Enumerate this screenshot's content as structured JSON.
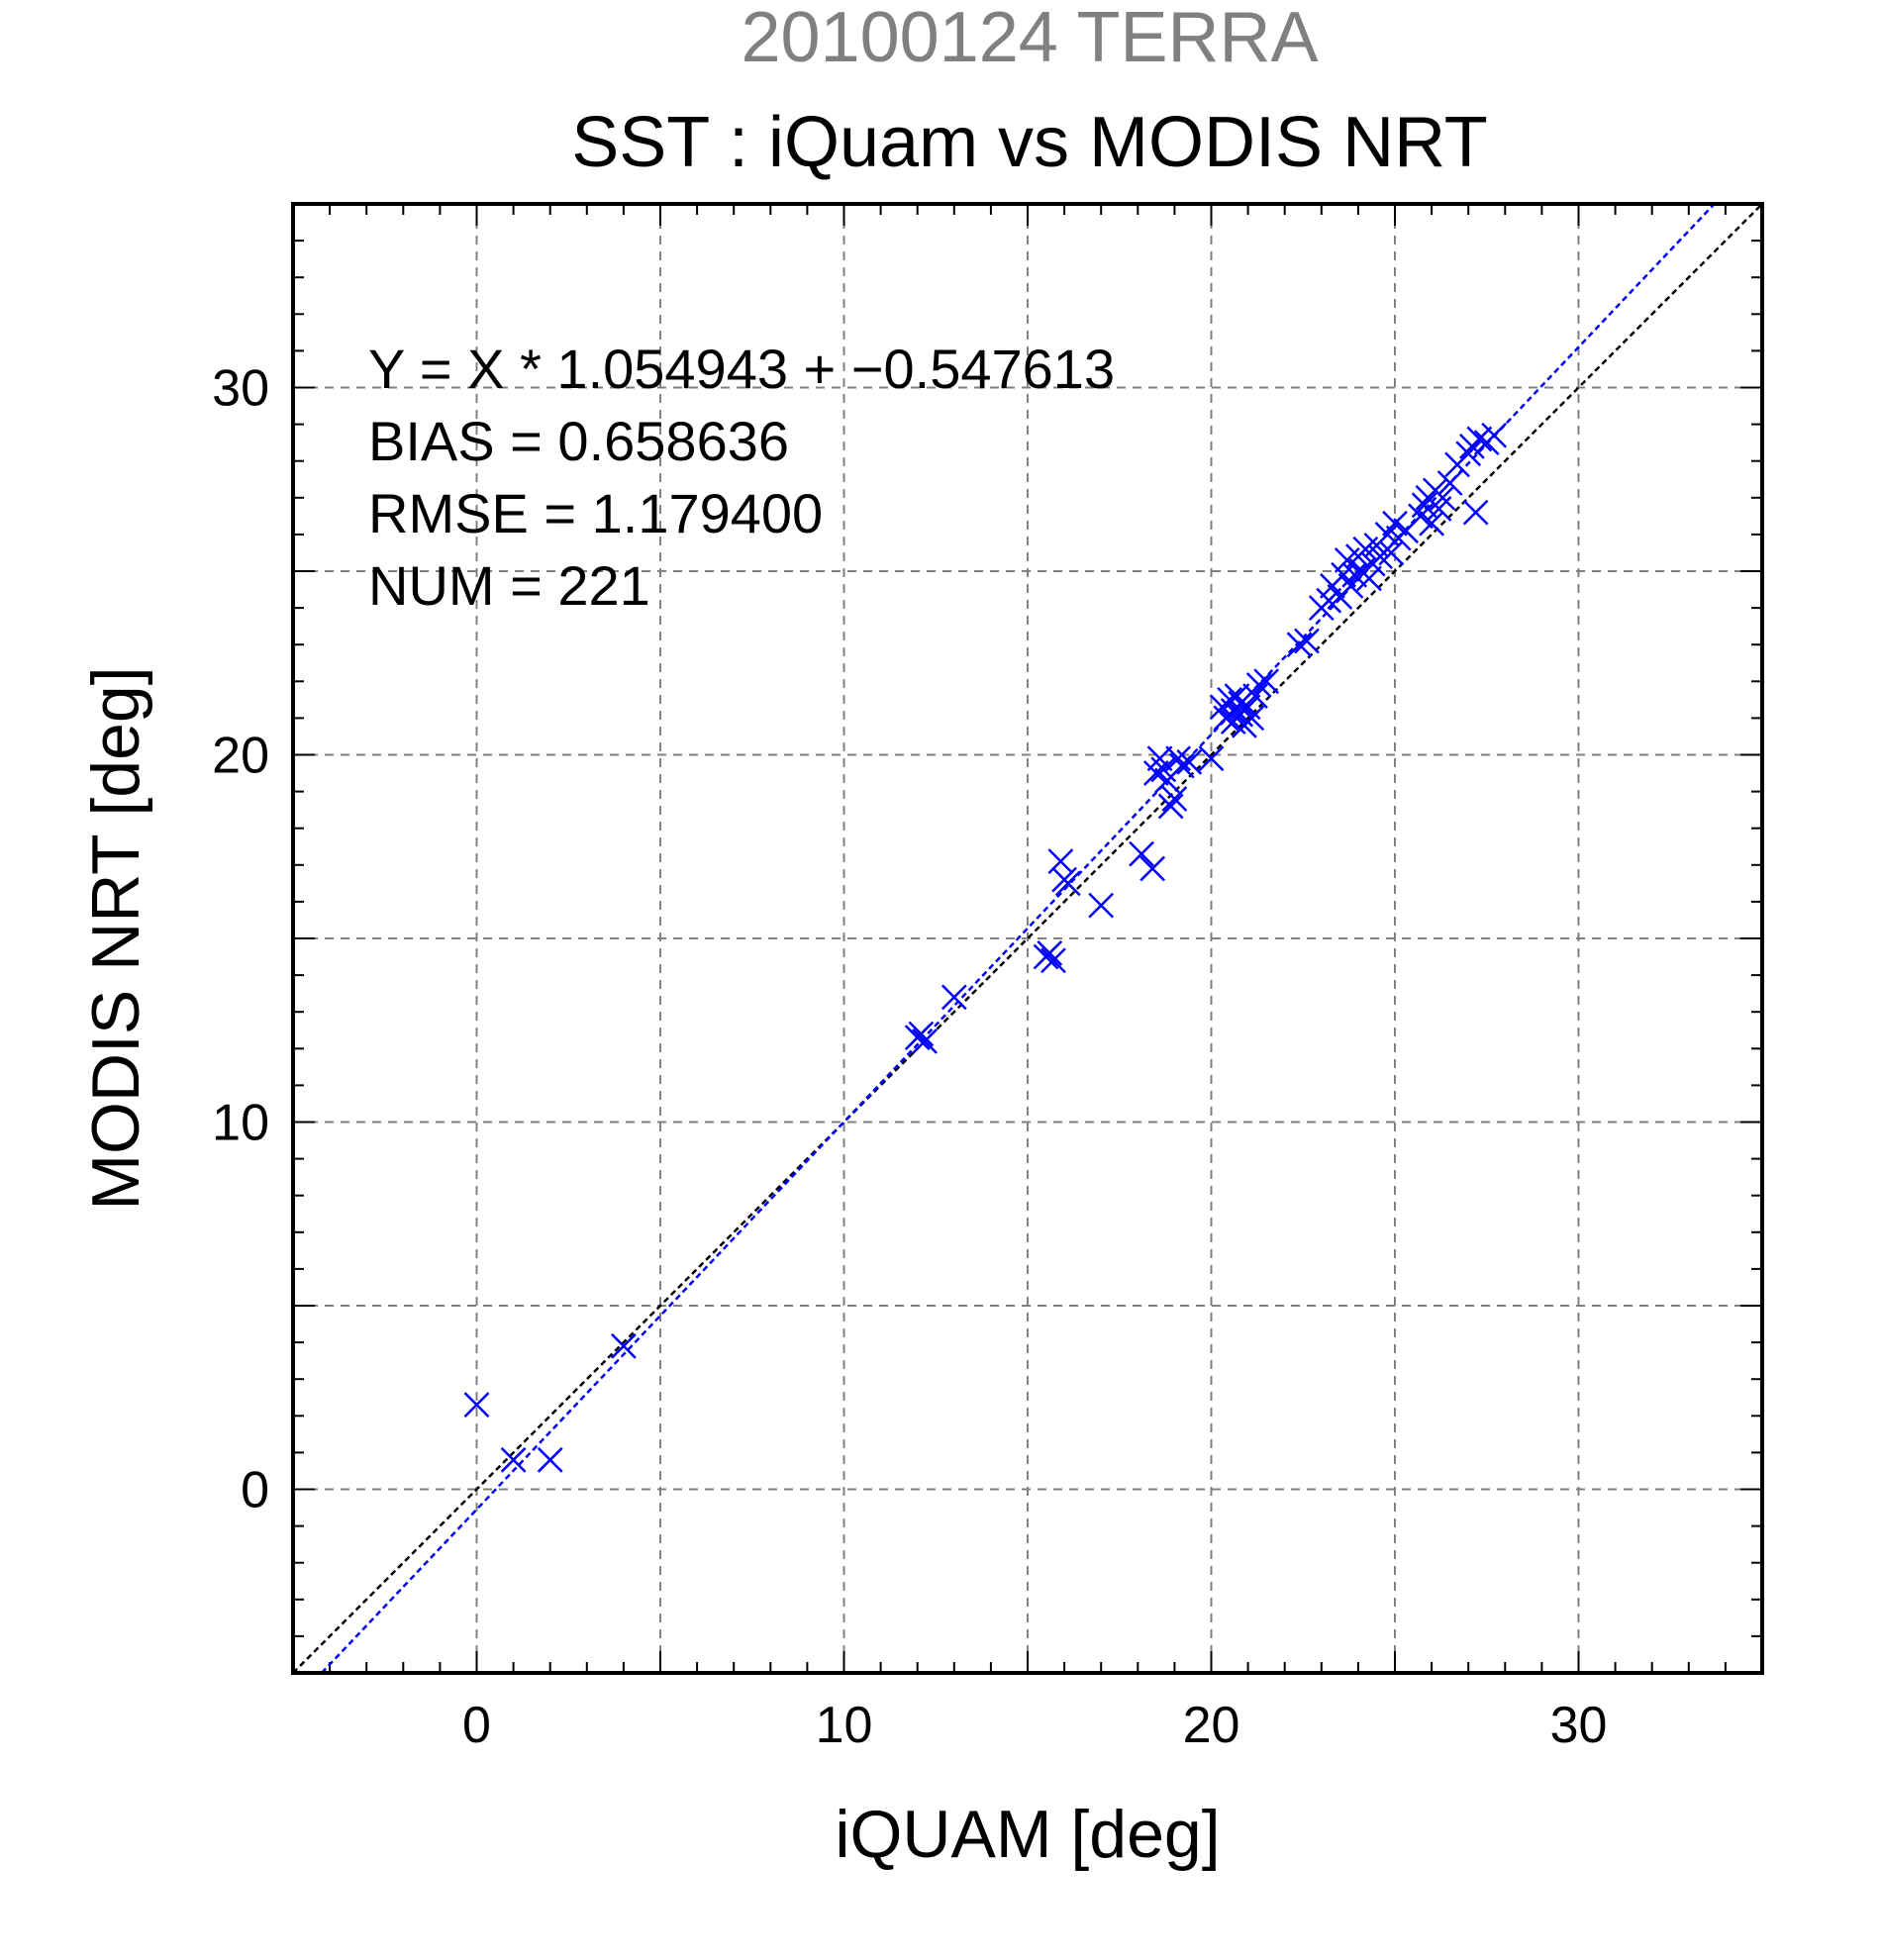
{
  "chart_data": {
    "type": "scatter",
    "suptitle": "20100124 TERRA",
    "title": "SST : iQuam vs MODIS NRT",
    "xlabel": "iQUAM [deg]",
    "ylabel": "MODIS NRT [deg]",
    "xlim": [
      -5,
      35
    ],
    "ylim": [
      -5,
      35
    ],
    "xticks": [
      0,
      10,
      20,
      30
    ],
    "yticks": [
      0,
      10,
      20,
      30
    ],
    "xtick_labels": [
      "0",
      "10",
      "20",
      "30"
    ],
    "ytick_labels": [
      "0",
      "10",
      "20",
      "30"
    ],
    "grid": true,
    "marker": "x",
    "colors": {
      "points": "#0000ff",
      "fit_line": "#0000ff",
      "identity_line": "#000000",
      "grid": "#808080"
    },
    "stats": [
      "Y = X * 1.054943 + −0.547613",
      "BIAS = 0.658636",
      "RMSE = 1.179400",
      "NUM = 221"
    ],
    "fit": {
      "slope": 1.054943,
      "intercept": -0.547613
    },
    "identity": {
      "slope": 1,
      "intercept": 0
    },
    "points": [
      [
        0.0,
        2.3
      ],
      [
        1.0,
        0.8
      ],
      [
        2.0,
        0.8
      ],
      [
        4.0,
        3.9
      ],
      [
        12.0,
        12.3
      ],
      [
        12.2,
        12.2
      ],
      [
        12.1,
        12.4
      ],
      [
        13.0,
        13.4
      ],
      [
        15.5,
        14.5
      ],
      [
        15.6,
        14.6
      ],
      [
        15.7,
        14.4
      ],
      [
        15.9,
        17.1
      ],
      [
        16.0,
        16.6
      ],
      [
        16.1,
        16.5
      ],
      [
        17.0,
        15.9
      ],
      [
        18.1,
        17.3
      ],
      [
        18.4,
        16.9
      ],
      [
        18.5,
        19.5
      ],
      [
        18.6,
        19.9
      ],
      [
        18.7,
        19.6
      ],
      [
        18.8,
        19.3
      ],
      [
        18.9,
        18.6
      ],
      [
        19.0,
        18.8
      ],
      [
        19.1,
        19.9
      ],
      [
        19.2,
        19.7
      ],
      [
        19.4,
        19.8
      ],
      [
        20.0,
        19.9
      ],
      [
        20.3,
        21.3
      ],
      [
        20.4,
        21.0
      ],
      [
        20.5,
        21.5
      ],
      [
        20.6,
        20.9
      ],
      [
        20.6,
        21.2
      ],
      [
        20.7,
        21.6
      ],
      [
        20.8,
        21.1
      ],
      [
        20.8,
        21.4
      ],
      [
        20.9,
        20.8
      ],
      [
        21.0,
        21.3
      ],
      [
        21.1,
        21.0
      ],
      [
        21.2,
        21.6
      ],
      [
        21.3,
        21.9
      ],
      [
        21.5,
        22.0
      ],
      [
        22.4,
        23.0
      ],
      [
        22.6,
        23.1
      ],
      [
        23.0,
        24.0
      ],
      [
        23.2,
        24.2
      ],
      [
        23.3,
        24.6
      ],
      [
        23.5,
        24.3
      ],
      [
        23.6,
        24.9
      ],
      [
        23.7,
        25.3
      ],
      [
        23.8,
        24.6
      ],
      [
        23.9,
        24.9
      ],
      [
        24.0,
        25.4
      ],
      [
        24.1,
        25.0
      ],
      [
        24.2,
        25.6
      ],
      [
        24.3,
        24.8
      ],
      [
        24.4,
        25.2
      ],
      [
        24.5,
        25.7
      ],
      [
        24.6,
        25.4
      ],
      [
        24.8,
        26.0
      ],
      [
        24.9,
        25.5
      ],
      [
        25.0,
        26.3
      ],
      [
        25.1,
        25.9
      ],
      [
        25.3,
        26.1
      ],
      [
        25.7,
        26.5
      ],
      [
        25.8,
        26.8
      ],
      [
        25.9,
        27.0
      ],
      [
        26.0,
        26.3
      ],
      [
        26.1,
        27.2
      ],
      [
        26.2,
        26.7
      ],
      [
        26.3,
        27.0
      ],
      [
        26.5,
        27.4
      ],
      [
        26.7,
        27.9
      ],
      [
        27.0,
        28.2
      ],
      [
        27.1,
        28.4
      ],
      [
        27.2,
        26.6
      ],
      [
        27.3,
        28.6
      ],
      [
        27.5,
        28.5
      ],
      [
        27.7,
        28.7
      ]
    ]
  }
}
